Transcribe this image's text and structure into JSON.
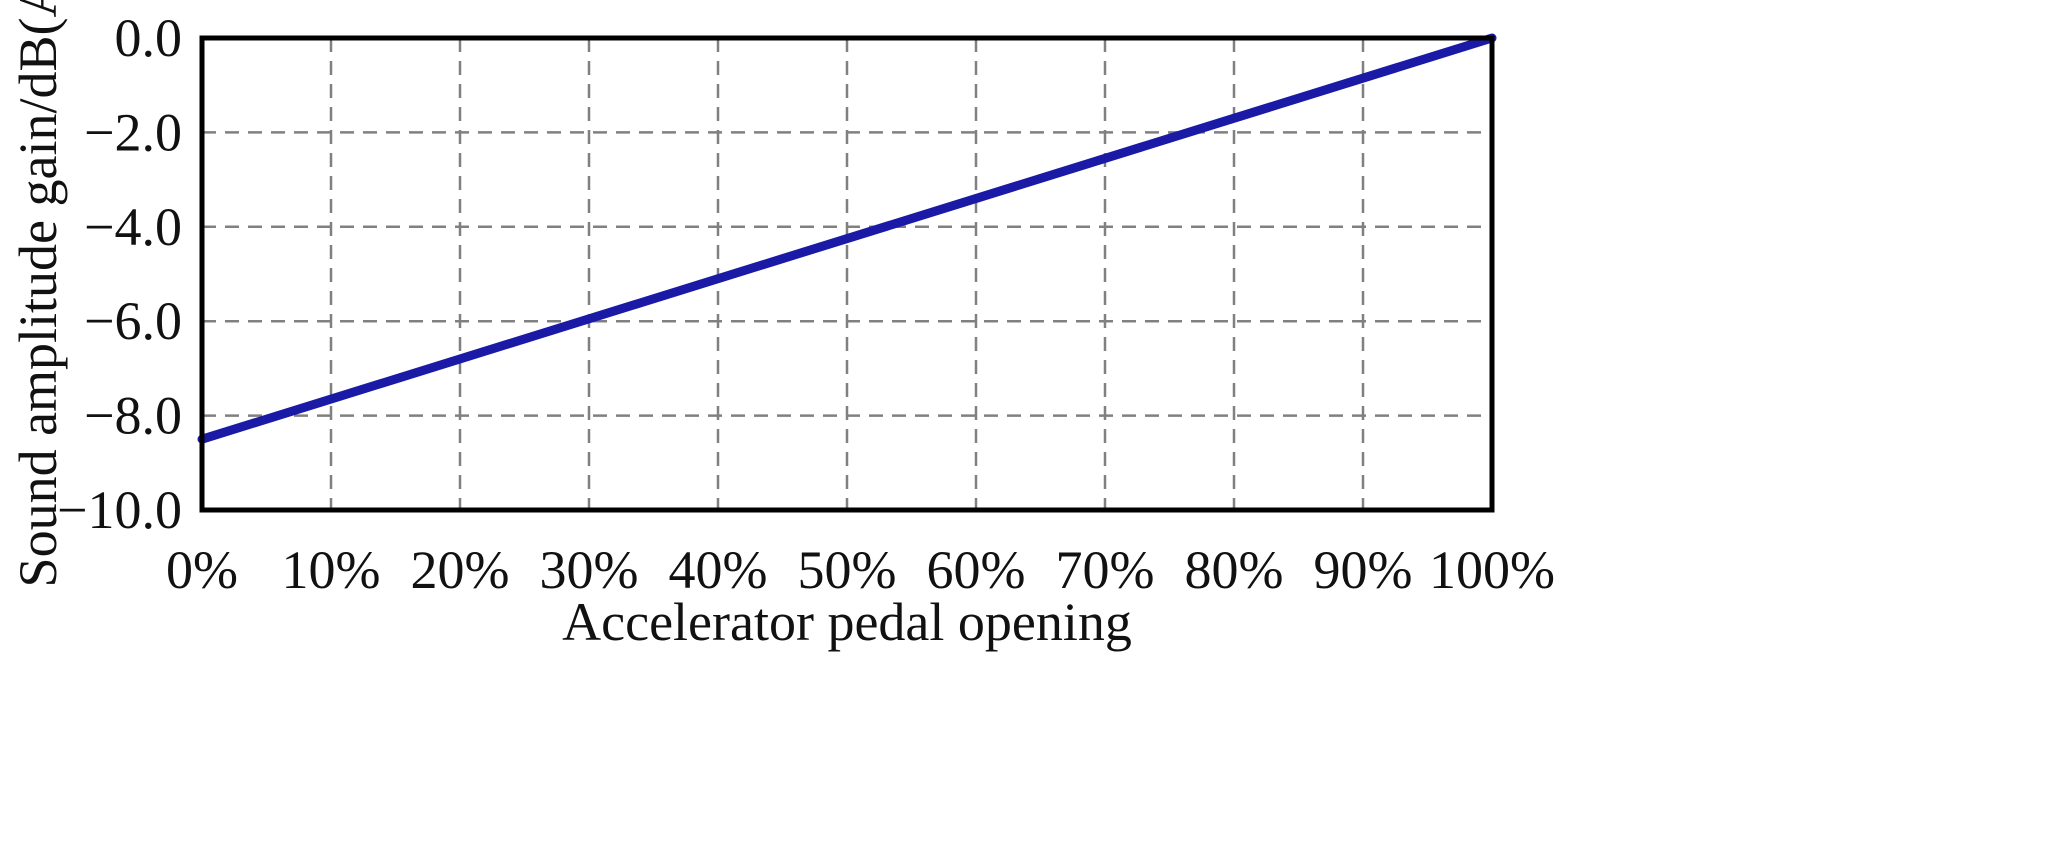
{
  "chart_data": {
    "type": "line",
    "title": "",
    "xlabel": "Accelerator pedal opening",
    "ylabel": "Sound amplitude gain/dB(A)",
    "xlim": [
      0,
      100
    ],
    "ylim": [
      -10,
      0
    ],
    "x_ticks": [
      0,
      10,
      20,
      30,
      40,
      50,
      60,
      70,
      80,
      90,
      100
    ],
    "x_tick_labels": [
      "0%",
      "10%",
      "20%",
      "30%",
      "40%",
      "50%",
      "60%",
      "70%",
      "80%",
      "90%",
      "100%"
    ],
    "y_ticks": [
      0,
      -2,
      -4,
      -6,
      -8,
      -10
    ],
    "y_tick_labels": [
      "0.0",
      "−2.0",
      "−4.0",
      "−6.0",
      "−8.0",
      "−10.0"
    ],
    "grid": true,
    "grid_style": "dashed",
    "legend": "none",
    "series": [
      {
        "x": [
          0,
          100
        ],
        "y": [
          -8.5,
          0
        ],
        "color": "#1a1aa6"
      }
    ]
  }
}
